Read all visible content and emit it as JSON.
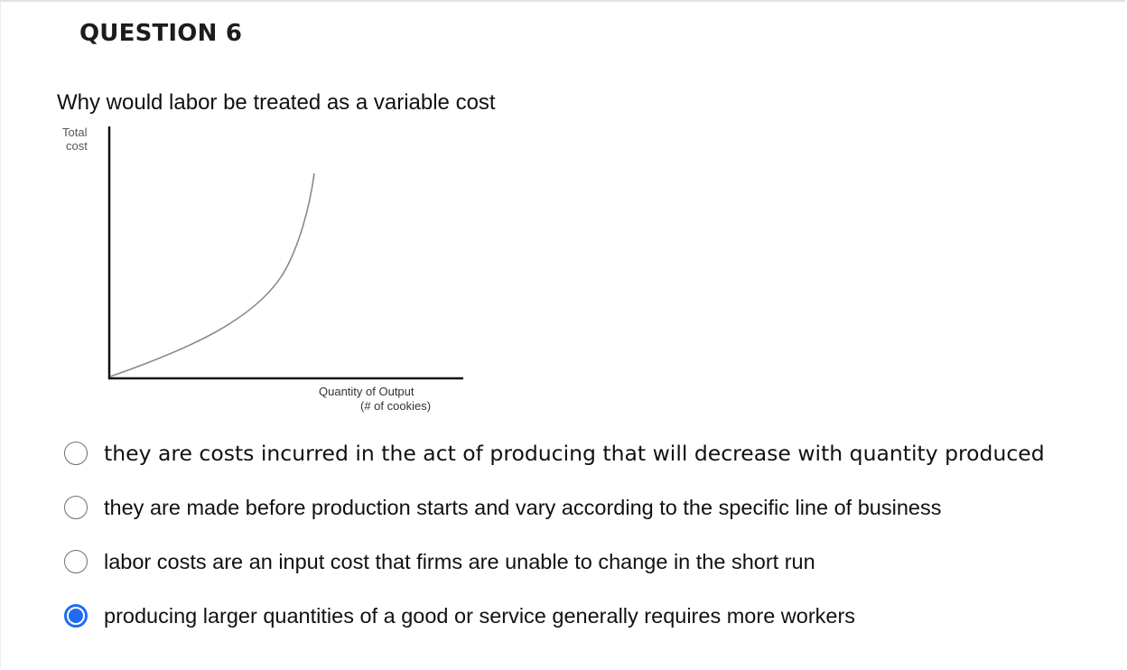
{
  "question": {
    "title": "QUESTION 6",
    "text": "Why would labor be treated as a variable cost"
  },
  "figure": {
    "y_axis_label_line1": "Total",
    "y_axis_label_line2": "cost",
    "x_axis_label_line1": "Quantity of Output",
    "x_axis_label_line2": "(# of cookies)"
  },
  "options": [
    {
      "label": "they are costs incurred in the act of producing that will decrease with quantity produced",
      "selected": false
    },
    {
      "label": "they are made before production starts and vary according to the specific line of business",
      "selected": false
    },
    {
      "label": "labor costs are an input cost that firms are unable to change in the short run",
      "selected": false
    },
    {
      "label": "producing larger quantities of a good or service generally requires more workers",
      "selected": true
    }
  ],
  "colors": {
    "radio_selected": "#1f6cf0",
    "radio_border": "#6f6f6f"
  }
}
